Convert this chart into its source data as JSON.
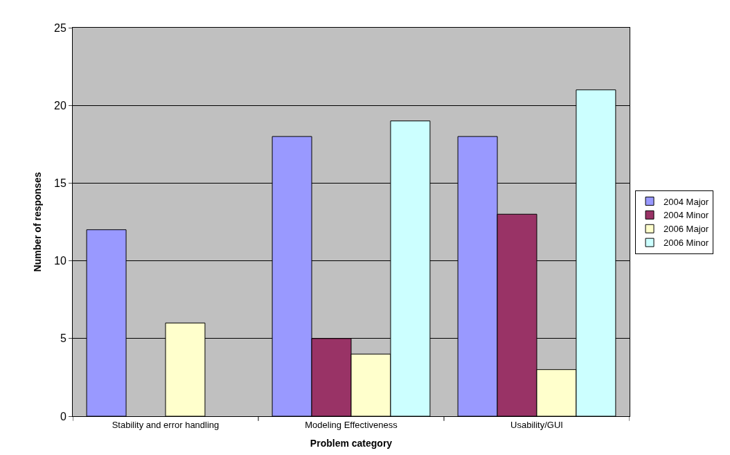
{
  "chart_data": {
    "type": "bar",
    "xlabel": "Problem category",
    "ylabel": "Number of responses",
    "categories": [
      "Stability and error handling",
      "Modeling Effectiveness",
      "Usability/GUI"
    ],
    "series": [
      {
        "name": "2004 Major",
        "color": "#9999ff",
        "values": [
          12,
          18,
          18
        ]
      },
      {
        "name": "2004 Minor",
        "color": "#993366",
        "values": [
          null,
          5,
          13
        ]
      },
      {
        "name": "2006 Major",
        "color": "#ffffcc",
        "values": [
          6,
          4,
          3
        ]
      },
      {
        "name": "2006 Minor",
        "color": "#ccffff",
        "values": [
          null,
          19,
          21
        ]
      }
    ],
    "ylim": [
      0,
      25
    ],
    "yticks": [
      0,
      5,
      10,
      15,
      20,
      25
    ],
    "grid": "y",
    "legend": "right"
  }
}
